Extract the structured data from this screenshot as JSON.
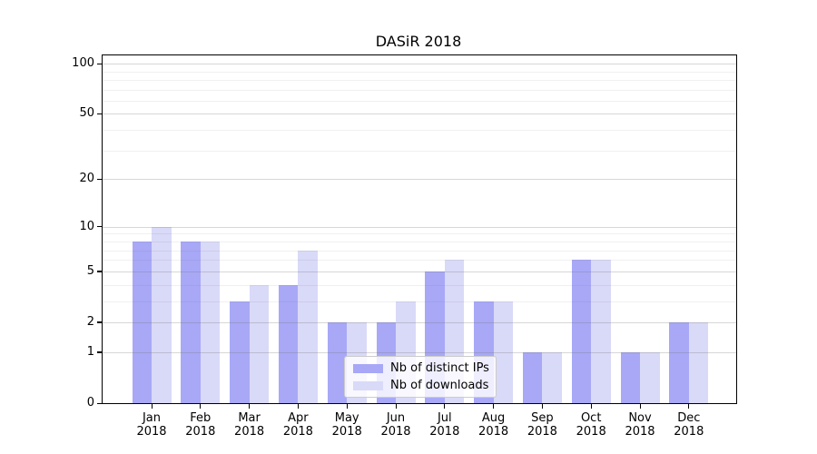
{
  "chart_data": {
    "type": "bar",
    "title": "DASiR 2018",
    "categories": [
      {
        "month": "Jan",
        "year": "2018"
      },
      {
        "month": "Feb",
        "year": "2018"
      },
      {
        "month": "Mar",
        "year": "2018"
      },
      {
        "month": "Apr",
        "year": "2018"
      },
      {
        "month": "May",
        "year": "2018"
      },
      {
        "month": "Jun",
        "year": "2018"
      },
      {
        "month": "Jul",
        "year": "2018"
      },
      {
        "month": "Aug",
        "year": "2018"
      },
      {
        "month": "Sep",
        "year": "2018"
      },
      {
        "month": "Oct",
        "year": "2018"
      },
      {
        "month": "Nov",
        "year": "2018"
      },
      {
        "month": "Dec",
        "year": "2018"
      }
    ],
    "series": [
      {
        "name": "Nb of distinct IPs",
        "color": "#a8a8f7",
        "values": [
          8,
          8,
          3,
          4,
          2,
          2,
          5,
          3,
          1,
          6,
          1,
          2
        ]
      },
      {
        "name": "Nb of downloads",
        "color": "#d9d9f8",
        "values": [
          10,
          8,
          4,
          7,
          2,
          3,
          6,
          3,
          1,
          6,
          1,
          2
        ]
      }
    ],
    "xlabel": "",
    "ylabel": "",
    "yscale": "log1p",
    "ylim": [
      0,
      112
    ],
    "yticks": [
      0,
      1,
      2,
      5,
      10,
      20,
      50,
      100
    ],
    "minor_gridlines": [
      3,
      4,
      6,
      7,
      8,
      9,
      30,
      40,
      60,
      70,
      80,
      90
    ],
    "grid": true,
    "legend_position": "lower-center",
    "axis_color": "#000000"
  }
}
